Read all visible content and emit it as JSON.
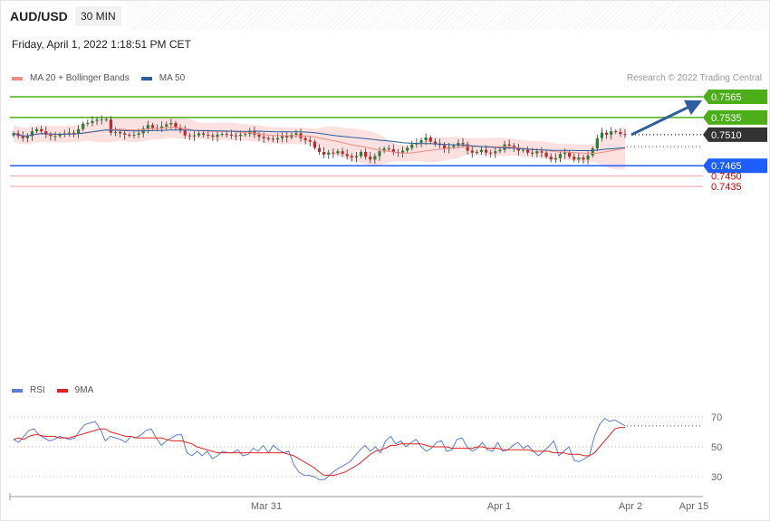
{
  "header": {
    "symbol": "AUD/USD",
    "timeframe": "30 MIN",
    "datetime": "Friday, April 1, 2022 1:18:51 PM CET"
  },
  "legend": {
    "main": [
      {
        "label": "MA 20 + Bollinger Bands",
        "color": "#f28b82"
      },
      {
        "label": "MA 50",
        "color": "#2e5e9e"
      }
    ],
    "rsi": [
      {
        "label": "RSI",
        "color": "#5b7fd6"
      },
      {
        "label": "9MA",
        "color": "#e02020"
      }
    ]
  },
  "credit": "Research © 2022 Trading Central",
  "colors": {
    "up_candle": "#2e7d32",
    "down_candle": "#c62828",
    "band_fill": "#fde0e0",
    "ma20": "#f28b82",
    "ma50": "#2e5e9e",
    "resistance": "#4caf1a",
    "support_pivot": "#1e5eff",
    "support_lines": "#f4a0a0",
    "support_text": "#cc0000",
    "current_price": "#333333"
  },
  "chart_data": [
    {
      "type": "candlestick",
      "title": "",
      "xlabel": "",
      "ylabel": "",
      "ylim": [
        0.742,
        0.757
      ],
      "x_ticks": [
        "Mar 31",
        "Apr 1",
        "Apr 2",
        "Apr 15"
      ],
      "price_levels": [
        {
          "label": "0.7565",
          "value": 0.7565,
          "role": "resistance"
        },
        {
          "label": "0.7535",
          "value": 0.7535,
          "role": "resistance"
        },
        {
          "label": "0.7510",
          "value": 0.751,
          "role": "current"
        },
        {
          "label": "0.7465",
          "value": 0.7465,
          "role": "pivot"
        },
        {
          "label": "0.7450",
          "value": 0.745,
          "role": "support"
        },
        {
          "label": "0.7435",
          "value": 0.7435,
          "role": "support"
        }
      ],
      "target_arrow": {
        "from": 0.751,
        "to": 0.7565
      },
      "closes": [
        0.7512,
        0.7508,
        0.7505,
        0.7508,
        0.7515,
        0.7518,
        0.7515,
        0.751,
        0.7508,
        0.7508,
        0.751,
        0.7512,
        0.7513,
        0.7512,
        0.7518,
        0.7526,
        0.7527,
        0.753,
        0.7532,
        0.7532,
        0.7532,
        0.7513,
        0.7514,
        0.7512,
        0.751,
        0.7509,
        0.751,
        0.7512,
        0.7519,
        0.7524,
        0.752,
        0.7519,
        0.7522,
        0.7525,
        0.7527,
        0.752,
        0.7516,
        0.7509,
        0.7508,
        0.7509,
        0.7512,
        0.751,
        0.7509,
        0.7507,
        0.751,
        0.7511,
        0.751,
        0.7509,
        0.7508,
        0.751,
        0.7511,
        0.7515,
        0.751,
        0.7507,
        0.7505,
        0.7504,
        0.7503,
        0.7505,
        0.7509,
        0.7506,
        0.751,
        0.7512,
        0.7505,
        0.7502,
        0.75,
        0.7491,
        0.7485,
        0.7481,
        0.7484,
        0.7483,
        0.7486,
        0.7482,
        0.7479,
        0.7477,
        0.7479,
        0.7485,
        0.7478,
        0.7474,
        0.7479,
        0.7486,
        0.749,
        0.7489,
        0.7485,
        0.7484,
        0.7487,
        0.7491,
        0.7496,
        0.7498,
        0.7502,
        0.7506,
        0.75,
        0.7497,
        0.7495,
        0.749,
        0.7492,
        0.7494,
        0.7498,
        0.7496,
        0.7487,
        0.7484,
        0.7485,
        0.7488,
        0.7484,
        0.7483,
        0.7486,
        0.7488,
        0.7496,
        0.7494,
        0.7491,
        0.7487,
        0.7488,
        0.7484,
        0.7483,
        0.7486,
        0.7484,
        0.7478,
        0.7474,
        0.7476,
        0.7482,
        0.7484,
        0.7478,
        0.7474,
        0.7477,
        0.7474,
        0.748,
        0.749,
        0.7505,
        0.7513,
        0.751,
        0.7515,
        0.7514,
        0.7511,
        0.751
      ]
    },
    {
      "type": "line",
      "title": "",
      "xlabel": "",
      "ylabel": "",
      "ylim": [
        20,
        80
      ],
      "y_ticks": [
        70,
        50,
        30
      ],
      "series": [
        {
          "name": "RSI",
          "values": [
            55,
            53,
            57,
            61,
            62,
            58,
            56,
            54,
            55,
            57,
            56,
            55,
            56,
            61,
            65,
            66,
            67,
            62,
            54,
            57,
            56,
            55,
            53,
            57,
            56,
            58,
            61,
            62,
            56,
            51,
            54,
            56,
            58,
            58,
            46,
            44,
            47,
            44,
            47,
            42,
            44,
            47,
            46,
            46,
            48,
            44,
            45,
            49,
            47,
            51,
            46,
            51,
            48,
            46,
            47,
            38,
            33,
            31,
            31,
            30,
            28,
            28,
            31,
            34,
            36,
            38,
            40,
            44,
            48,
            51,
            47,
            50,
            46,
            54,
            57,
            52,
            54,
            50,
            53,
            55,
            50,
            47,
            49,
            53,
            54,
            47,
            48,
            55,
            56,
            50,
            47,
            49,
            53,
            48,
            47,
            53,
            47,
            48,
            51,
            53,
            49,
            51,
            47,
            44,
            47,
            50,
            54,
            44,
            47,
            50,
            41,
            40,
            42,
            44,
            57,
            65,
            69,
            67,
            68,
            66,
            64
          ]
        },
        {
          "name": "9MA",
          "values": [
            55,
            56,
            55,
            57,
            58,
            58,
            57,
            57,
            57,
            56,
            56,
            56,
            57,
            58,
            59,
            60,
            61,
            62,
            62,
            60,
            59,
            58,
            57,
            57,
            56,
            56,
            56,
            56,
            56,
            56,
            55,
            54,
            54,
            54,
            53,
            52,
            50,
            49,
            48,
            47,
            46,
            46,
            46,
            46,
            46,
            46,
            46,
            46,
            46,
            46,
            46,
            46,
            46,
            46,
            45,
            44,
            42,
            40,
            38,
            36,
            33,
            31,
            31,
            31,
            32,
            33,
            35,
            37,
            39,
            42,
            45,
            47,
            48,
            49,
            51,
            51,
            52,
            52,
            52,
            52,
            52,
            51,
            50,
            50,
            50,
            50,
            49,
            49,
            49,
            49,
            49,
            50,
            50,
            49,
            49,
            49,
            48,
            48,
            48,
            48,
            48,
            48,
            47,
            47,
            47,
            47,
            46,
            46,
            46,
            45,
            45,
            45,
            44,
            44,
            46,
            50,
            54,
            58,
            62,
            63,
            63
          ]
        }
      ]
    }
  ]
}
